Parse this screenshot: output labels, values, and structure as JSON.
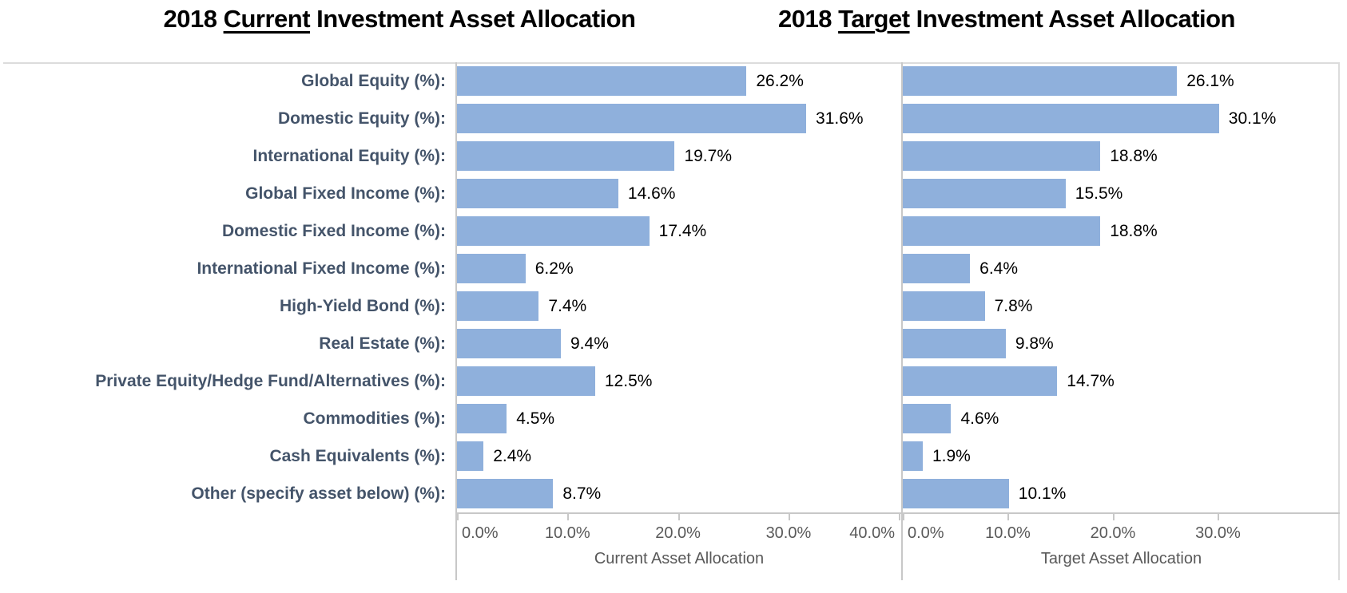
{
  "titles": {
    "left": {
      "prefix": "2018 ",
      "underlined": "Current",
      "suffix": " Investment Asset Allocation"
    },
    "right": {
      "prefix": "2018 ",
      "underlined": "Target",
      "suffix": " Investment Asset Allocation"
    }
  },
  "colors": {
    "bar": "#8FB0DC",
    "axis_line": "#C8C8C8",
    "frame_border": "#DCDCDC",
    "category_label": "#44546A",
    "tick_label": "#595959",
    "value_label": "#000000"
  },
  "categories": [
    "Global Equity (%):",
    "Domestic Equity (%):",
    "International Equity (%):",
    "Global Fixed Income (%):",
    "Domestic Fixed Income (%):",
    "International Fixed Income (%):",
    "High-Yield Bond (%):",
    "Real Estate (%):",
    "Private Equity/Hedge Fund/Alternatives (%):",
    "Commodities (%):",
    "Cash Equivalents (%):",
    "Other (specify asset below) (%):"
  ],
  "chart_data": [
    {
      "type": "bar",
      "orientation": "horizontal",
      "id": "current",
      "title": "2018 Current Investment Asset Allocation",
      "categories": [
        "Global Equity (%):",
        "Domestic Equity (%):",
        "International Equity (%):",
        "Global Fixed Income (%):",
        "Domestic Fixed Income (%):",
        "International Fixed Income (%):",
        "High-Yield Bond (%):",
        "Real Estate (%):",
        "Private Equity/Hedge Fund/Alternatives (%):",
        "Commodities (%):",
        "Cash Equivalents (%):",
        "Other (specify asset below) (%):"
      ],
      "values": [
        26.2,
        31.6,
        19.7,
        14.6,
        17.4,
        6.2,
        7.4,
        9.4,
        12.5,
        4.5,
        2.4,
        8.7
      ],
      "value_labels": [
        "26.2%",
        "31.6%",
        "19.7%",
        "14.6%",
        "17.4%",
        "6.2%",
        "7.4%",
        "9.4%",
        "12.5%",
        "4.5%",
        "2.4%",
        "8.7%"
      ],
      "xlabel": "Current Asset Allocation",
      "xlim": [
        0,
        40.2
      ],
      "grid": false,
      "ticks": [
        {
          "value": 0,
          "label": "0.0%",
          "align": "inner-left"
        },
        {
          "value": 10,
          "label": "10.0%",
          "align": "center"
        },
        {
          "value": 20,
          "label": "20.0%",
          "align": "center"
        },
        {
          "value": 30,
          "label": "30.0%",
          "align": "center"
        },
        {
          "value": 40,
          "label": "40.0%",
          "align": "inner-right"
        }
      ]
    },
    {
      "type": "bar",
      "orientation": "horizontal",
      "id": "target",
      "title": "2018 Target Investment Asset Allocation",
      "categories": [
        "Global Equity (%):",
        "Domestic Equity (%):",
        "International Equity (%):",
        "Global Fixed Income (%):",
        "Domestic Fixed Income (%):",
        "International Fixed Income (%):",
        "High-Yield Bond (%):",
        "Real Estate (%):",
        "Private Equity/Hedge Fund/Alternatives (%):",
        "Commodities (%):",
        "Cash Equivalents (%):",
        "Other (specify asset below) (%):"
      ],
      "values": [
        26.1,
        30.1,
        18.8,
        15.5,
        18.8,
        6.4,
        7.8,
        9.8,
        14.7,
        4.6,
        1.9,
        10.1
      ],
      "value_labels": [
        "26.1%",
        "30.1%",
        "18.8%",
        "15.5%",
        "18.8%",
        "6.4%",
        "7.8%",
        "9.8%",
        "14.7%",
        "4.6%",
        "1.9%",
        "10.1%"
      ],
      "xlabel": "Target Asset Allocation",
      "xlim": [
        0,
        41.6
      ],
      "grid": false,
      "ticks": [
        {
          "value": 0,
          "label": "0.0%",
          "align": "inner-left"
        },
        {
          "value": 10,
          "label": "10.0%",
          "align": "center"
        },
        {
          "value": 20,
          "label": "20.0%",
          "align": "center"
        },
        {
          "value": 30,
          "label": "30.0%",
          "align": "center"
        }
      ]
    }
  ]
}
